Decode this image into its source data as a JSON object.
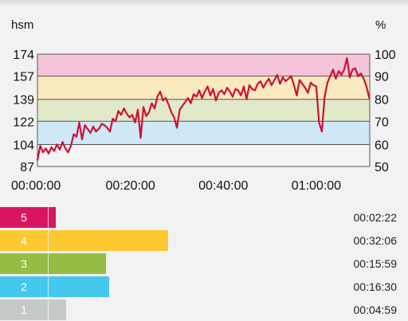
{
  "chart_data": {
    "type": "line",
    "left_axis_unit": "hsm",
    "right_axis_unit": "%",
    "y_ticks_left": [
      87,
      104,
      122,
      139,
      157,
      174
    ],
    "y_ticks_right": [
      50,
      60,
      70,
      80,
      90,
      100
    ],
    "ylim": [
      87,
      174
    ],
    "x_ticks": [
      "00:00:00",
      "00:20:00",
      "00:40:00",
      "01:00:00"
    ],
    "xlim_minutes": [
      0,
      71.5
    ],
    "zone_bands": [
      {
        "from": 87,
        "to": 104,
        "color": "#f5f5f5"
      },
      {
        "from": 104,
        "to": 122,
        "color": "#cfe8f7"
      },
      {
        "from": 122,
        "to": 139,
        "color": "#e2e9c9"
      },
      {
        "from": 139,
        "to": 157,
        "color": "#fbe9bf"
      },
      {
        "from": 157,
        "to": 174,
        "color": "#f6c4d9"
      }
    ],
    "line_color": "#cc1133",
    "series": [
      {
        "x": [
          0,
          0.6,
          1.2,
          1.8,
          2.4,
          3.0,
          3.6,
          4.2,
          4.8,
          5.4,
          6.0,
          6.6,
          7.2,
          7.8,
          8.4,
          9.0,
          9.6,
          10.2,
          10.8,
          11.4,
          12.0,
          12.6,
          13.2,
          13.8,
          14.4,
          15.0,
          15.6,
          16.2,
          16.8,
          17.4,
          18.0,
          18.6,
          19.2,
          19.8,
          20.4,
          21.0,
          21.6,
          22.2,
          22.8,
          23.4,
          24.0,
          24.6,
          25.2,
          25.8,
          26.4,
          27.0,
          27.6,
          28.2,
          28.8,
          29.4,
          30.0,
          30.6,
          31.2,
          31.8,
          32.4,
          33.0,
          33.6,
          34.2,
          34.8,
          35.4,
          36.0,
          36.6,
          37.2,
          37.8,
          38.4,
          39.0,
          39.6,
          40.2,
          40.8,
          41.4,
          42.0,
          42.6,
          43.2,
          43.8,
          44.4,
          45.0,
          45.6,
          46.2,
          46.8,
          47.4,
          48.0,
          48.6,
          49.2,
          49.8,
          50.4,
          51.0,
          51.6,
          52.2,
          52.8,
          53.4,
          54.0,
          54.6,
          55.2,
          55.8,
          56.4,
          57.0,
          57.6,
          58.2,
          58.8,
          59.4,
          60.0,
          60.6,
          61.2,
          61.8,
          62.4,
          63.0,
          63.6,
          64.2,
          64.8,
          65.4,
          66.0,
          66.6,
          67.2,
          67.8,
          68.4,
          69.0,
          69.6,
          70.2,
          70.8,
          71.4
        ],
        "values": [
          92,
          103,
          98,
          101,
          97,
          102,
          99,
          104,
          100,
          106,
          101,
          98,
          103,
          112,
          110,
          121,
          108,
          119,
          116,
          113,
          118,
          114,
          116,
          120,
          119,
          117,
          114,
          124,
          122,
          130,
          127,
          132,
          128,
          125,
          127,
          121,
          131,
          109,
          133,
          126,
          129,
          136,
          132,
          141,
          145,
          138,
          140,
          135,
          129,
          125,
          117,
          131,
          134,
          137,
          140,
          136,
          143,
          141,
          146,
          140,
          145,
          149,
          142,
          147,
          138,
          144,
          146,
          143,
          148,
          145,
          141,
          147,
          146,
          142,
          149,
          139,
          150,
          147,
          146,
          151,
          153,
          148,
          152,
          155,
          150,
          154,
          158,
          151,
          156,
          153,
          155,
          157,
          150,
          142,
          154,
          151,
          148,
          144,
          152,
          150,
          149,
          121,
          114,
          141,
          152,
          157,
          162,
          155,
          161,
          158,
          162,
          171,
          156,
          162,
          163,
          157,
          159,
          155,
          149,
          140
        ]
      }
    ]
  },
  "zones": [
    {
      "label": "5",
      "time": "00:02:22",
      "color": "#d81660",
      "fraction": 0.137
    },
    {
      "label": "4",
      "time": "00:32:06",
      "color": "#fdc930",
      "fraction": 0.412
    },
    {
      "label": "3",
      "time": "00:15:59",
      "color": "#96bc43",
      "fraction": 0.26
    },
    {
      "label": "2",
      "time": "00:16:30",
      "color": "#43c8ee",
      "fraction": 0.268
    },
    {
      "label": "1",
      "time": "00:04:59",
      "color": "#c6c9c9",
      "fraction": 0.162
    }
  ]
}
